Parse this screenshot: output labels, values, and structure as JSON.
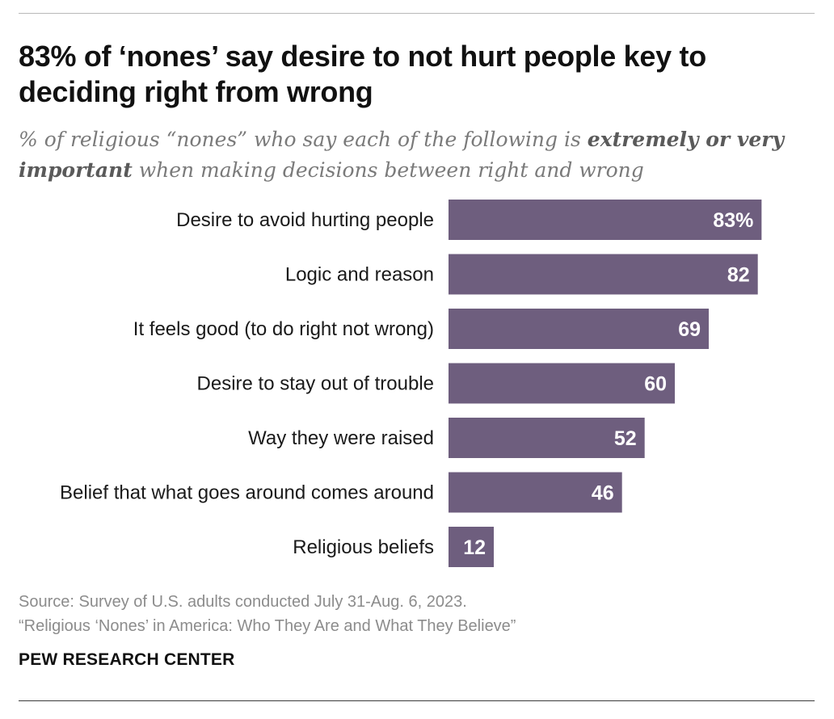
{
  "title": "83% of ‘nones’ say desire to not hurt people key to deciding right from wrong",
  "subtitle": {
    "part1": "% of religious “nones” who say each of the following is ",
    "bold": "extremely or very important",
    "part2": " when making decisions between right and wrong"
  },
  "source": {
    "line1": "Source: Survey of U.S. adults conducted July 31-Aug. 6, 2023.",
    "line2": "“Religious ‘Nones’ in America: Who They Are and What They Believe”"
  },
  "brand": "PEW RESEARCH CENTER",
  "colors": {
    "bar": "#6e5e7e",
    "bar_label": "#ffffff",
    "category_label": "#1a1a1a"
  },
  "chart_data": {
    "type": "bar",
    "orientation": "horizontal",
    "categories": [
      "Desire to avoid hurting people",
      "Logic and reason",
      "It feels good (to do right not wrong)",
      "Desire to stay out of trouble",
      "Way they were raised",
      "Belief that what goes around comes around",
      "Religious beliefs"
    ],
    "values": [
      83,
      82,
      69,
      60,
      52,
      46,
      12
    ],
    "value_labels": [
      "83%",
      "82",
      "69",
      "60",
      "52",
      "46",
      "12"
    ],
    "xlim": [
      0,
      100
    ],
    "grid": false,
    "legend": "none"
  }
}
